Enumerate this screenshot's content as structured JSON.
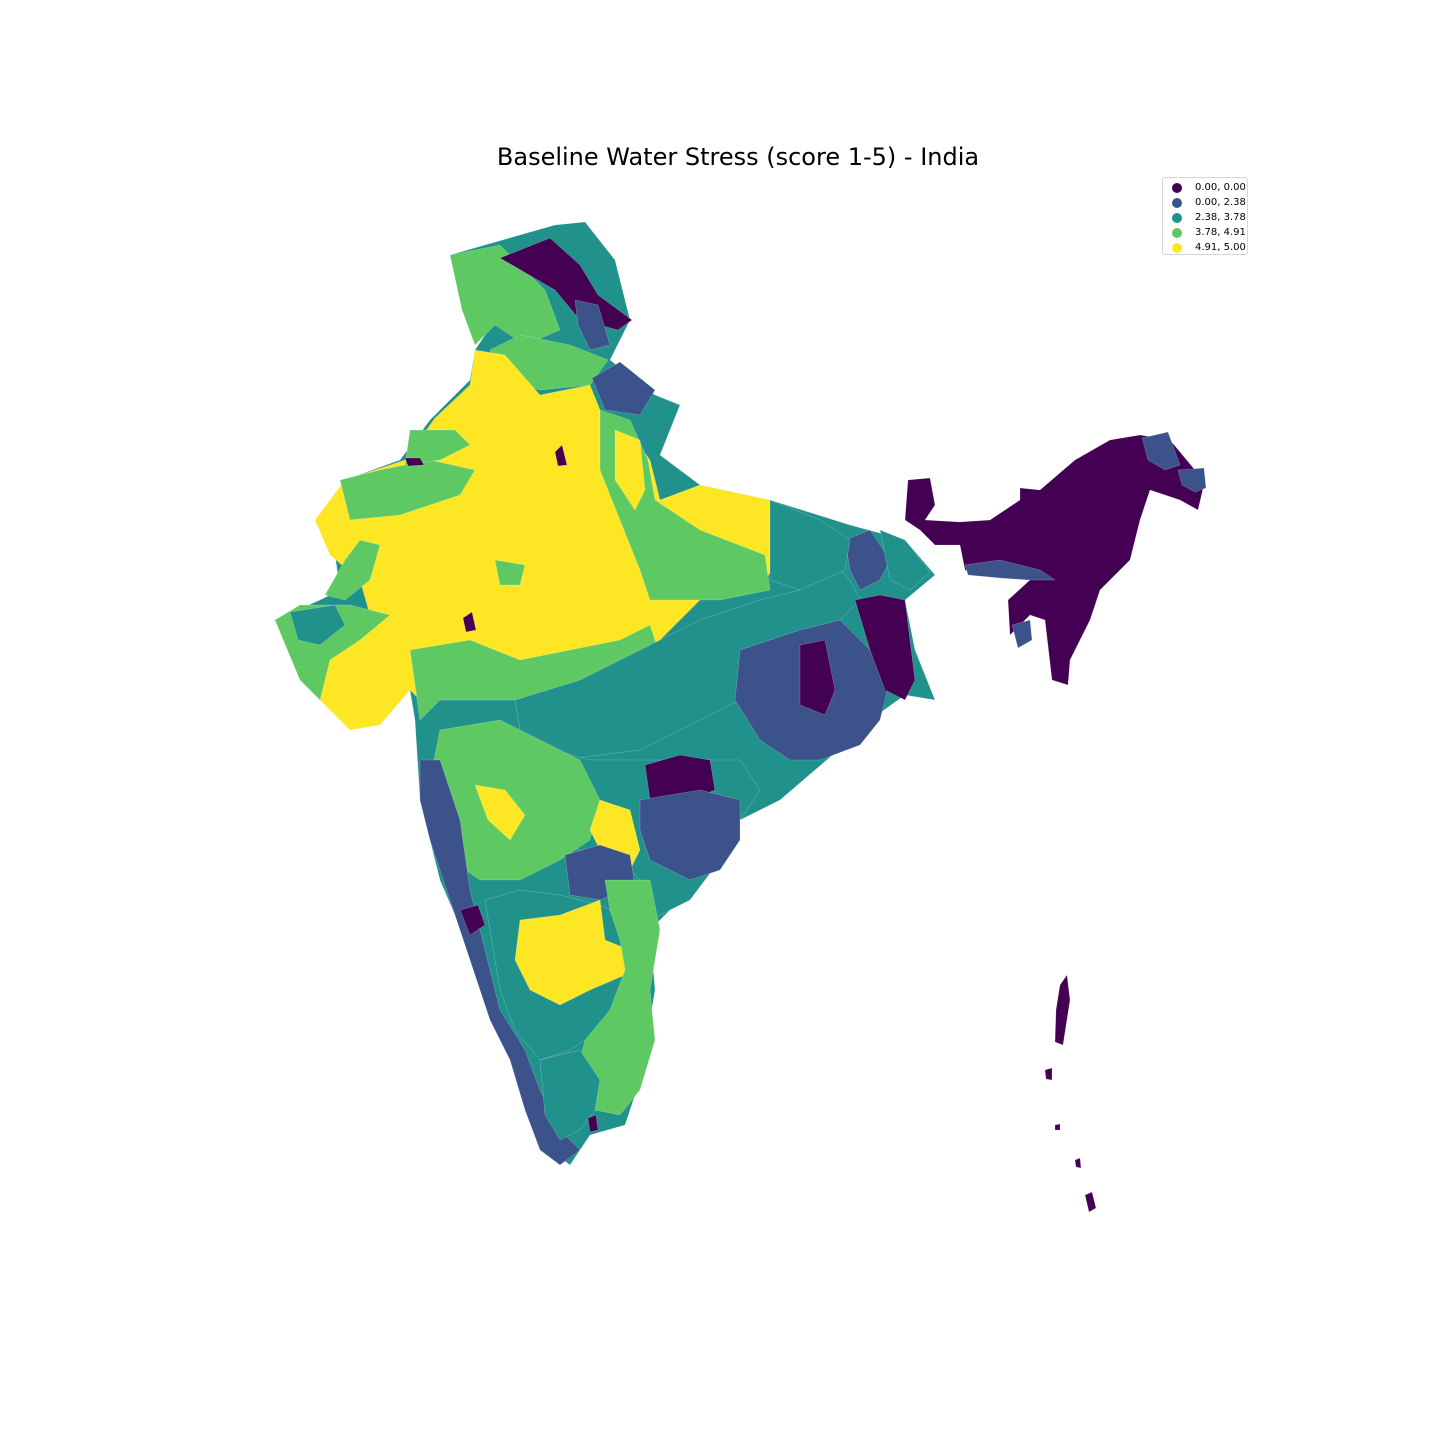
{
  "title": "Baseline Water Stress (score 1-5) - India",
  "legend": {
    "placement": "top-right",
    "items": [
      {
        "label": "0.00, 0.00",
        "color": "#440154"
      },
      {
        "label": "0.00, 2.38",
        "color": "#3b528b"
      },
      {
        "label": "2.38, 3.78",
        "color": "#21918c"
      },
      {
        "label": "3.78, 4.91",
        "color": "#5ec962"
      },
      {
        "label": "4.91, 5.00",
        "color": "#fde725"
      }
    ]
  },
  "chart_data": {
    "type": "choropleth",
    "title": "Baseline Water Stress (score 1-5) - India",
    "classes": [
      {
        "range": [
          0.0,
          0.0
        ],
        "color": "#440154"
      },
      {
        "range": [
          0.0,
          2.38
        ],
        "color": "#3b528b"
      },
      {
        "range": [
          2.38,
          3.78
        ],
        "color": "#21918c"
      },
      {
        "range": [
          3.78,
          4.91
        ],
        "color": "#5ec962"
      },
      {
        "range": [
          4.91,
          5.0
        ],
        "color": "#fde725"
      }
    ],
    "axes_visible": false
  }
}
